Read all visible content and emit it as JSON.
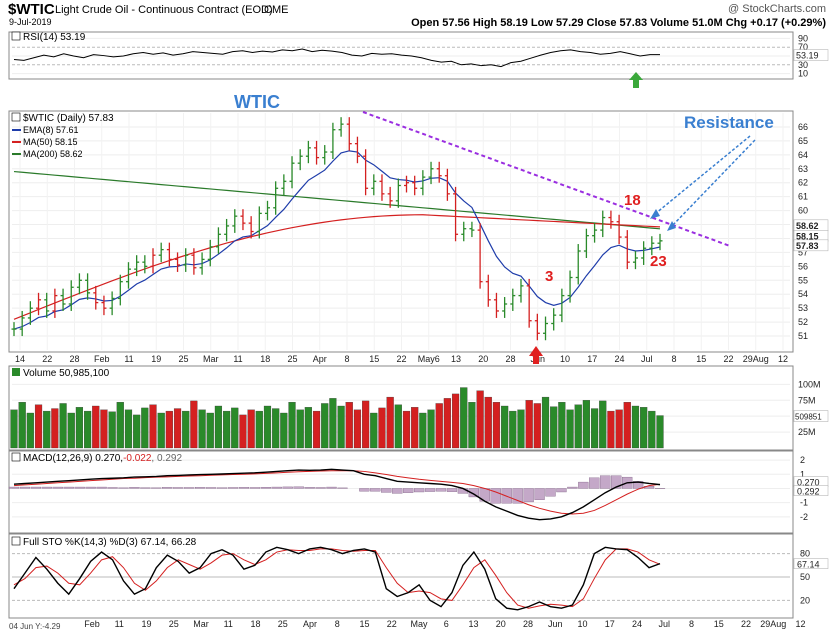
{
  "header": {
    "symbol": "$WTIC",
    "name": "Light Crude Oil - Continuous Contract (EOD)",
    "exchange": "CME",
    "date": "9-Jul-2019",
    "copyright": "@ StockCharts.com",
    "quote": "Open 57.56  High 58.19  Low 57.29  Close 57.83  Volume 51.0M  Chg +0.17 (+0.29%)"
  },
  "annotations": {
    "wtic_label": "WTIC",
    "resistance_label": "Resistance",
    "label_18": "18",
    "label_23": "23",
    "label_3": "3"
  },
  "colors": {
    "up": "#2a8a2a",
    "down": "#d42020",
    "ema": "#1e3caa",
    "ma50": "#d42020",
    "ma200": "#2a7a2a",
    "resistance": "#9a2ee0",
    "annotation_blue": "#3a7fd0",
    "annotation_red": "#e02020"
  },
  "chart_data": [
    {
      "type": "line",
      "title": "RSI(14) 53.19",
      "ylim": [
        0,
        100
      ],
      "y_ticks": [
        "90",
        "70",
        "50",
        "30",
        "10"
      ],
      "current": "53.19",
      "series": [
        {
          "name": "RSI(14)",
          "values": [
            42,
            40,
            46,
            52,
            48,
            55,
            50,
            46,
            53,
            51,
            48,
            50,
            55,
            58,
            54,
            57,
            52,
            55,
            60,
            58,
            56,
            54,
            60,
            62,
            58,
            61,
            59,
            64,
            62,
            66,
            60,
            63,
            61,
            58,
            52,
            50,
            56,
            54,
            55,
            52,
            50,
            46,
            40,
            36,
            38,
            30,
            32,
            28,
            30,
            26,
            35,
            38,
            45,
            52,
            58,
            62,
            64,
            60,
            58,
            54,
            56,
            60,
            55,
            50,
            53,
            53.19
          ]
        }
      ]
    },
    {
      "type": "candlestick",
      "title": "$WTIC (Daily) 57.83",
      "ylim": [
        50,
        67
      ],
      "y_ticks": [
        "66",
        "65",
        "64",
        "63",
        "62",
        "61",
        "60",
        "59",
        "58",
        "57",
        "56",
        "55",
        "54",
        "53",
        "52",
        "51"
      ],
      "right_labels": [
        "58.62",
        "58.15",
        "57.83"
      ],
      "x_ticks": [
        "14",
        "22",
        "28",
        "Feb",
        "11",
        "19",
        "25",
        "Mar",
        "11",
        "18",
        "25",
        "Apr",
        "8",
        "15",
        "22",
        "May6",
        "13",
        "20",
        "28",
        "Jun",
        "10",
        "17",
        "24",
        "Jul",
        "8",
        "15",
        "22",
        "29Aug",
        "12"
      ],
      "series": [
        {
          "name": "EMA(8) 57.61"
        },
        {
          "name": "MA(50) 58.15"
        },
        {
          "name": "MA(200) 58.62"
        }
      ],
      "close": [
        51.5,
        52.3,
        53.0,
        53.6,
        52.8,
        53.9,
        53.3,
        54.5,
        55.0,
        54.1,
        53.4,
        53.0,
        53.7,
        54.9,
        55.8,
        56.3,
        56.0,
        56.8,
        57.2,
        56.5,
        56.1,
        56.8,
        55.9,
        56.5,
        57.4,
        58.3,
        58.9,
        59.6,
        59.1,
        58.5,
        59.8,
        60.2,
        61.6,
        62.1,
        63.4,
        63.9,
        64.5,
        63.8,
        64.2,
        65.8,
        66.2,
        64.8,
        63.9,
        61.6,
        62.1,
        61.2,
        60.7,
        61.8,
        62.0,
        61.6,
        62.4,
        63.0,
        62.5,
        61.2,
        58.3,
        58.7,
        58.6,
        54.9,
        53.6,
        52.8,
        53.3,
        53.9,
        54.6,
        52.1,
        51.2,
        51.9,
        52.5,
        53.9,
        55.2,
        57.1,
        58.2,
        58.6,
        59.5,
        59.2,
        58.1,
        56.3,
        56.6,
        57.3,
        57.66,
        57.83
      ],
      "volume_title": "Volume 50,985,100",
      "volume_ticks": [
        "100M",
        "75M",
        "50M",
        "25M"
      ],
      "volume_current": "50985100",
      "volume": [
        60,
        72,
        55,
        68,
        58,
        62,
        70,
        55,
        64,
        58,
        66,
        60,
        57,
        72,
        60,
        52,
        63,
        68,
        55,
        58,
        62,
        58,
        74,
        60,
        55,
        66,
        58,
        63,
        52,
        60,
        58,
        66,
        62,
        55,
        72,
        60,
        64,
        58,
        70,
        78,
        66,
        72,
        60,
        74,
        55,
        63,
        80,
        68,
        58,
        64,
        55,
        60,
        70,
        78,
        85,
        95,
        72,
        90,
        80,
        72,
        66,
        58,
        60,
        75,
        70,
        80,
        65,
        72,
        60,
        68,
        75,
        62,
        74,
        58,
        60,
        72,
        66,
        64,
        58,
        51
      ],
      "down_days": [
        3,
        5,
        10,
        11,
        17,
        19,
        20,
        22,
        28,
        29,
        37,
        41,
        42,
        43,
        45,
        46,
        48,
        49,
        52,
        53,
        54,
        57,
        58,
        59,
        63,
        64,
        73,
        74,
        75
      ]
    },
    {
      "type": "line",
      "title": "MACD(12,26,9) 0.270, -0.022, 0.292",
      "title_parts": [
        "MACD(12,26,9) 0.270,",
        "-0.022",
        ", 0.292"
      ],
      "ylim": [
        -3,
        2.5
      ],
      "y_ticks": [
        "2",
        "1",
        "0",
        "-1",
        "-2"
      ],
      "right_labels": [
        "0.270",
        "0.292"
      ],
      "series": [
        {
          "name": "MACD",
          "values": [
            0.3,
            0.35,
            0.4,
            0.45,
            0.5,
            0.55,
            0.6,
            0.65,
            0.7,
            0.72,
            0.75,
            0.8,
            0.82,
            0.85,
            0.9,
            0.92,
            0.95,
            0.98,
            1.0,
            1.02,
            1.05,
            1.08,
            1.1,
            1.15,
            1.2,
            1.25,
            1.3,
            1.28,
            1.3,
            1.35,
            1.3,
            1.25,
            1.0,
            0.9,
            0.7,
            0.5,
            0.45,
            0.4,
            0.35,
            0.3,
            0.2,
            0.0,
            -0.4,
            -0.9,
            -1.3,
            -1.6,
            -1.9,
            -2.1,
            -2.2,
            -2.15,
            -2.0,
            -1.7,
            -1.3,
            -0.8,
            -0.3,
            0.1,
            0.4,
            0.45,
            0.35,
            0.27
          ]
        },
        {
          "name": "Signal",
          "values": [
            0.2,
            0.25,
            0.3,
            0.35,
            0.4,
            0.45,
            0.5,
            0.55,
            0.6,
            0.65,
            0.7,
            0.72,
            0.76,
            0.8,
            0.82,
            0.85,
            0.88,
            0.9,
            0.93,
            0.96,
            0.98,
            1.0,
            1.03,
            1.06,
            1.1,
            1.14,
            1.18,
            1.2,
            1.23,
            1.25,
            1.26,
            1.25,
            1.2,
            1.1,
            0.98,
            0.85,
            0.75,
            0.65,
            0.57,
            0.5,
            0.43,
            0.35,
            0.2,
            0.0,
            -0.25,
            -0.55,
            -0.85,
            -1.15,
            -1.4,
            -1.6,
            -1.75,
            -1.8,
            -1.75,
            -1.55,
            -1.2,
            -0.8,
            -0.4,
            -0.05,
            0.2,
            0.292
          ]
        },
        {
          "name": "Histogram",
          "values": [
            0.1,
            0.1,
            0.1,
            0.1,
            0.1,
            0.1,
            0.1,
            0.1,
            0.1,
            0.07,
            0.05,
            0.08,
            0.06,
            0.05,
            0.08,
            0.07,
            0.07,
            0.08,
            0.07,
            0.06,
            0.07,
            0.08,
            0.07,
            0.09,
            0.1,
            0.11,
            0.12,
            0.08,
            0.07,
            0.1,
            0.04,
            0.0,
            -0.2,
            -0.2,
            -0.28,
            -0.35,
            -0.3,
            -0.25,
            -0.22,
            -0.2,
            -0.23,
            -0.35,
            -0.6,
            -0.9,
            -1.05,
            -1.05,
            -1.05,
            -0.95,
            -0.8,
            -0.55,
            -0.25,
            0.1,
            0.45,
            0.75,
            0.9,
            0.9,
            0.8,
            0.5,
            0.15,
            -0.022
          ]
        }
      ]
    },
    {
      "type": "line",
      "title": "Full STO %K(14,3) %D(3) 67.14, 66.28",
      "ylim": [
        0,
        100
      ],
      "y_ticks": [
        "80",
        "50",
        "20"
      ],
      "right_labels": [
        "67.14"
      ],
      "series": [
        {
          "name": "%K(14,3)",
          "values": [
            35,
            55,
            75,
            60,
            42,
            28,
            48,
            70,
            82,
            72,
            45,
            28,
            35,
            62,
            78,
            70,
            55,
            62,
            80,
            85,
            78,
            60,
            65,
            82,
            88,
            85,
            80,
            86,
            88,
            85,
            80,
            84,
            86,
            82,
            35,
            25,
            30,
            40,
            20,
            12,
            30,
            65,
            82,
            60,
            22,
            10,
            8,
            12,
            18,
            12,
            10,
            14,
            40,
            80,
            88,
            86,
            85,
            75,
            62,
            67.14
          ]
        },
        {
          "name": "%D(3)",
          "values": [
            40,
            48,
            62,
            64,
            55,
            42,
            40,
            55,
            72,
            76,
            62,
            42,
            33,
            45,
            62,
            72,
            66,
            60,
            68,
            78,
            80,
            72,
            66,
            72,
            82,
            85,
            84,
            84,
            86,
            86,
            84,
            83,
            84,
            84,
            62,
            42,
            30,
            32,
            30,
            22,
            20,
            40,
            62,
            72,
            52,
            30,
            14,
            10,
            13,
            15,
            14,
            12,
            22,
            48,
            72,
            86,
            86,
            82,
            72,
            66.28
          ]
        }
      ]
    }
  ],
  "footer": {
    "x_ticks": [
      "Feb",
      "11",
      "19",
      "25",
      "Mar",
      "11",
      "18",
      "25",
      "Apr",
      "8",
      "15",
      "22",
      "May",
      "6",
      "13",
      "20",
      "28",
      "Jun",
      "10",
      "17",
      "24",
      "Jul",
      "8",
      "15",
      "22",
      "29Aug",
      "12"
    ],
    "note": "04 Jun Y:-4.29"
  }
}
